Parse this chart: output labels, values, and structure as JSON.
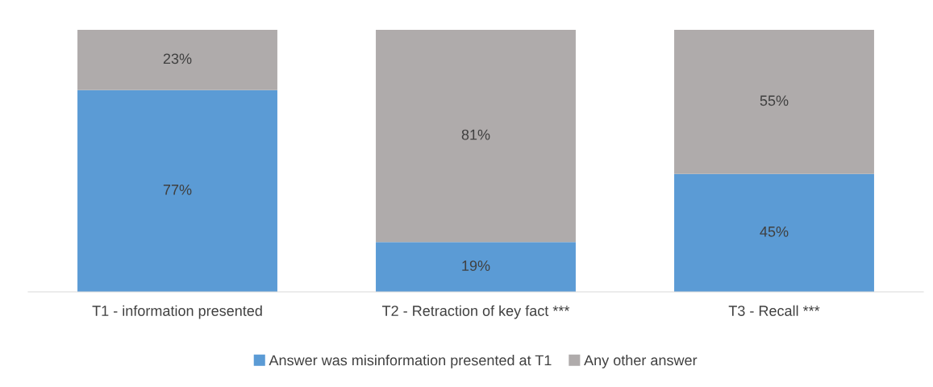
{
  "chart_data": {
    "type": "bar",
    "stacked": true,
    "categories": [
      "T1 - information presented",
      "T2 - Retraction of key fact ***",
      "T3 - Recall ***"
    ],
    "series": [
      {
        "name": "Answer was misinformation presented at T1",
        "color": "#5b9bd5",
        "values": [
          77,
          19,
          45
        ],
        "value_labels": [
          "77%",
          "19%",
          "45%"
        ]
      },
      {
        "name": "Any other answer",
        "color": "#afabab",
        "values": [
          23,
          81,
          55
        ],
        "value_labels": [
          "23%",
          "81%",
          "55%"
        ]
      }
    ],
    "legend": "bottom",
    "grid": false,
    "tick_labels": "x"
  }
}
